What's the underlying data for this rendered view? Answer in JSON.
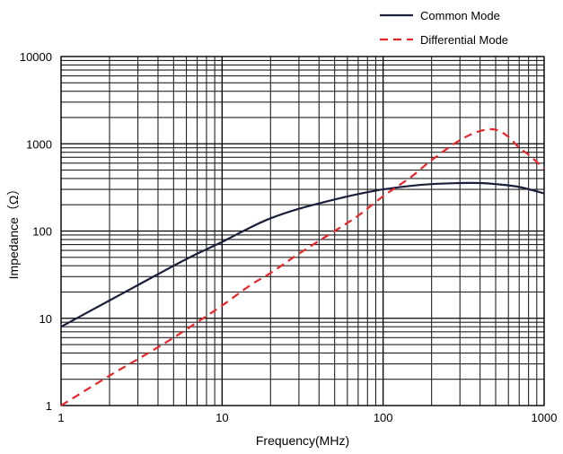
{
  "chart_data": {
    "type": "line",
    "title": "",
    "xlabel": "Frequency(MHz)",
    "ylabel": "Impedance（Ω）",
    "xscale": "log",
    "yscale": "log",
    "xlim": [
      1,
      1000
    ],
    "ylim": [
      1,
      10000
    ],
    "x_ticks": [
      "1",
      "10",
      "100",
      "1000"
    ],
    "y_ticks": [
      "1",
      "10",
      "100",
      "1000",
      "10000"
    ],
    "grid": true,
    "legend_position": "top-right, above plot",
    "series": [
      {
        "name": "Common Mode",
        "color": "#1a1f3a",
        "line_style": "solid",
        "x": [
          1,
          2,
          3,
          5,
          7,
          10,
          15,
          20,
          30,
          50,
          70,
          100,
          150,
          200,
          300,
          400,
          500,
          700,
          1000
        ],
        "y": [
          8,
          16,
          24,
          40,
          55,
          75,
          110,
          140,
          180,
          230,
          265,
          300,
          330,
          345,
          355,
          355,
          345,
          320,
          270
        ]
      },
      {
        "name": "Differential Mode",
        "color": "#e8262a",
        "line_style": "dashed",
        "x": [
          1,
          2,
          3,
          5,
          7,
          10,
          15,
          20,
          30,
          50,
          70,
          100,
          150,
          200,
          300,
          400,
          500,
          600,
          700,
          800,
          1000
        ],
        "y": [
          1,
          2.2,
          3.4,
          6,
          9,
          14,
          24,
          33,
          55,
          100,
          150,
          250,
          420,
          650,
          1100,
          1400,
          1450,
          1200,
          900,
          750,
          520
        ]
      }
    ]
  }
}
